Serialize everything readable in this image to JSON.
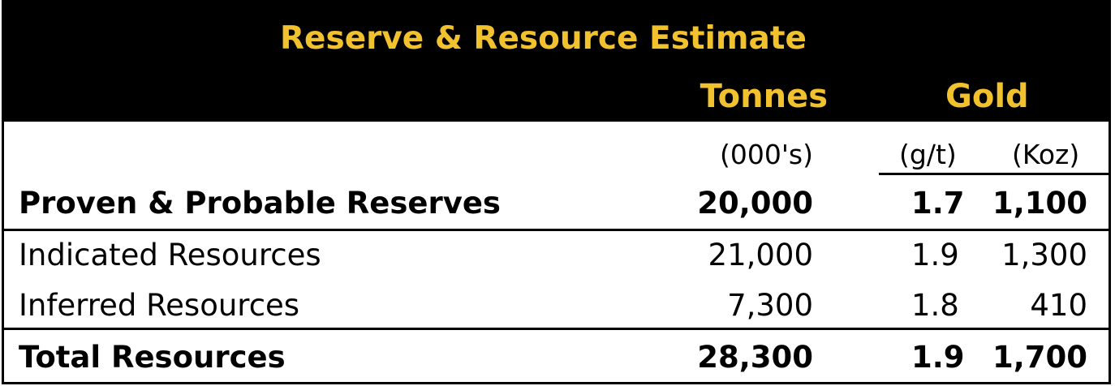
{
  "title": "Reserve & Resource Estimate",
  "headers": {
    "tonnes": "Tonnes",
    "gold": "Gold"
  },
  "units": {
    "tonnes": "(000's)",
    "grade": "(g/t)",
    "koz": "(Koz)"
  },
  "rows": [
    {
      "label": "Proven & Probable Reserves",
      "tonnes": "20,000",
      "grade": "1.7",
      "koz": "1,100"
    },
    {
      "label": "Indicated Resources",
      "tonnes": "21,000",
      "grade": "1.9",
      "koz": "1,300"
    },
    {
      "label": "Inferred Resources",
      "tonnes": "7,300",
      "grade": "1.8",
      "koz": "410"
    },
    {
      "label": "Total Resources",
      "tonnes": "28,300",
      "grade": "1.9",
      "koz": "1,700"
    }
  ],
  "colors": {
    "header_bg": "#000000",
    "header_text": "#f2c12e"
  }
}
